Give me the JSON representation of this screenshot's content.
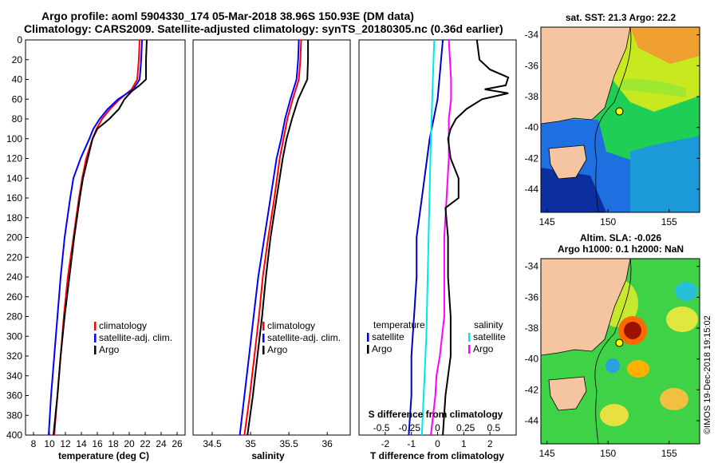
{
  "titles": {
    "line1": "Argo profile: aoml 5904330_174 05-Mar-2018 38.96S 150.93E (DM data)",
    "line2": "Climatology: CARS2009. Satellite-adjusted climatology: synTS_20180305.nc (0.36d earlier)"
  },
  "colors": {
    "climatology": "#ff0000",
    "satellite": "#0000ff",
    "argo": "#000000",
    "t_sat": "#0000cc",
    "s_sat": "#00e5ee",
    "s_argo": "#ff00ff"
  },
  "chart_data": [
    {
      "type": "line",
      "name": "temperature-profile",
      "xlabel": "temperature (deg C)",
      "ylabel": "",
      "xlim": [
        7,
        27
      ],
      "ylim": [
        400,
        0
      ],
      "xticks": [
        8,
        10,
        12,
        14,
        16,
        18,
        20,
        22,
        24,
        26
      ],
      "yticks": [
        0,
        20,
        40,
        60,
        80,
        100,
        120,
        140,
        160,
        180,
        200,
        220,
        240,
        260,
        280,
        300,
        320,
        340,
        360,
        380,
        400
      ],
      "legend": [
        "climatology",
        "satellite-adj. clim.",
        "Argo"
      ],
      "series": [
        {
          "name": "climatology",
          "color": "#ff0000",
          "depth": [
            0,
            20,
            40,
            50,
            60,
            70,
            80,
            90,
            100,
            120,
            140,
            160,
            200,
            240,
            280,
            320,
            360,
            400
          ],
          "values": [
            21.3,
            21.2,
            21.0,
            20.3,
            18.8,
            17.6,
            16.6,
            15.9,
            15.4,
            14.6,
            14.1,
            13.7,
            13.0,
            12.3,
            11.8,
            11.4,
            11.0,
            10.6
          ]
        },
        {
          "name": "satellite-adj. clim.",
          "color": "#0000ff",
          "depth": [
            0,
            20,
            40,
            50,
            60,
            70,
            80,
            90,
            100,
            120,
            140,
            160,
            200,
            240,
            280,
            320,
            360,
            400
          ],
          "values": [
            21.6,
            21.5,
            21.3,
            20.5,
            18.6,
            17.3,
            16.3,
            15.5,
            15.0,
            13.9,
            13.0,
            12.6,
            11.9,
            11.4,
            11.0,
            10.6,
            10.2,
            9.9
          ]
        },
        {
          "name": "Argo",
          "color": "#000000",
          "depth": [
            0,
            20,
            40,
            46,
            52,
            60,
            70,
            80,
            90,
            100,
            120,
            140,
            160,
            200,
            240,
            280,
            320,
            360,
            400
          ],
          "values": [
            22.2,
            22.1,
            22.1,
            21.3,
            20.3,
            19.4,
            18.7,
            17.5,
            16.0,
            15.4,
            14.8,
            14.2,
            13.8,
            13.1,
            12.5,
            11.9,
            11.4,
            11.0,
            10.5
          ]
        }
      ]
    },
    {
      "type": "line",
      "name": "salinity-profile",
      "xlabel": "salinity",
      "ylabel": "",
      "xlim": [
        34.25,
        36.3
      ],
      "ylim": [
        400,
        0
      ],
      "xticks": [
        34.5,
        35,
        35.5,
        36
      ],
      "legend": [
        "climatology",
        "satellite-adj. clim.",
        "Argo"
      ],
      "series": [
        {
          "name": "climatology",
          "color": "#ff0000",
          "depth": [
            0,
            20,
            40,
            60,
            80,
            100,
            120,
            160,
            200,
            240,
            280,
            320,
            360,
            400
          ],
          "values": [
            35.66,
            35.65,
            35.63,
            35.55,
            35.48,
            35.43,
            35.38,
            35.31,
            35.23,
            35.16,
            35.11,
            35.05,
            34.99,
            34.92
          ]
        },
        {
          "name": "satellite-adj. clim.",
          "color": "#0000ff",
          "depth": [
            0,
            20,
            40,
            60,
            80,
            100,
            120,
            160,
            200,
            240,
            280,
            320,
            360,
            400
          ],
          "values": [
            35.63,
            35.62,
            35.6,
            35.52,
            35.45,
            35.4,
            35.34,
            35.26,
            35.18,
            35.1,
            35.04,
            34.98,
            34.92,
            34.86
          ]
        },
        {
          "name": "Argo",
          "color": "#000000",
          "depth": [
            0,
            20,
            40,
            60,
            80,
            100,
            120,
            160,
            200,
            240,
            280,
            320,
            360,
            400
          ],
          "values": [
            35.75,
            35.75,
            35.74,
            35.62,
            35.54,
            35.47,
            35.42,
            35.34,
            35.26,
            35.2,
            35.15,
            35.09,
            35.03,
            34.96
          ]
        }
      ]
    },
    {
      "type": "line",
      "name": "difference-profile",
      "xlabel": "T difference from climatology",
      "x2label": "S difference from climatology",
      "xlim": [
        -3,
        3
      ],
      "ylim": [
        400,
        0
      ],
      "xticks": [
        -2,
        -1,
        0,
        1,
        2
      ],
      "x2ticks": [
        -0.5,
        -0.25,
        0,
        0.25,
        0.5
      ],
      "legend_left_title": "temperature",
      "legend_right_title": "salinity",
      "legend_left": [
        "satellite",
        "Argo"
      ],
      "legend_right": [
        "satellite",
        "Argo"
      ],
      "series": [
        {
          "name": "T satellite",
          "color": "#0000cc",
          "depth": [
            0,
            60,
            100,
            160,
            200,
            240,
            280,
            320,
            360,
            400
          ],
          "values": [
            0.2,
            0.0,
            -0.3,
            -0.6,
            -0.8,
            -0.8,
            -0.9,
            -1.0,
            -1.0,
            -1.1
          ]
        },
        {
          "name": "S satellite",
          "color": "#00e5ee",
          "depth": [
            0,
            100,
            200,
            300,
            400
          ],
          "values": [
            -0.03,
            -0.06,
            -0.08,
            -0.1,
            -0.14
          ]
        },
        {
          "name": "S Argo",
          "color": "#ff00ff",
          "depth": [
            0,
            40,
            60,
            80,
            120,
            200,
            280,
            320,
            340,
            360,
            400
          ],
          "values": [
            0.1,
            0.12,
            0.12,
            0.1,
            0.1,
            0.06,
            0.06,
            0.02,
            -0.01,
            -0.02,
            -0.06
          ]
        },
        {
          "name": "T Argo",
          "color": "#000000",
          "depth": [
            0,
            20,
            30,
            38,
            46,
            50,
            54,
            60,
            70,
            80,
            90,
            100,
            120,
            140,
            160,
            170,
            200,
            240,
            280,
            320,
            360,
            400
          ],
          "values": [
            1.5,
            1.6,
            2.0,
            2.7,
            2.6,
            1.8,
            2.7,
            1.7,
            1.1,
            0.7,
            0.5,
            0.4,
            0.5,
            0.8,
            0.8,
            0.3,
            0.4,
            0.4,
            0.5,
            0.5,
            0.3,
            0.2
          ]
        }
      ]
    },
    {
      "type": "heatmap",
      "name": "sst-map",
      "title": "sat. SST: 21.3 Argo: 22.2",
      "xticks": [
        145,
        150,
        155
      ],
      "yticks": [
        -34,
        -36,
        -38,
        -40,
        -42,
        -44
      ],
      "xlim": [
        144.5,
        157.5
      ],
      "ylim": [
        -45.5,
        -33.5
      ],
      "argo_position": {
        "lon": 150.93,
        "lat": -38.96
      }
    },
    {
      "type": "heatmap",
      "name": "sla-map",
      "title_line1": "Altim. SLA: -0.026",
      "title_line2": "Argo h1000: 0.1 h2000: NaN",
      "xticks": [
        145,
        150,
        155
      ],
      "yticks": [
        -34,
        -36,
        -38,
        -40,
        -42,
        -44
      ],
      "xlim": [
        144.5,
        157.5
      ],
      "ylim": [
        -45.5,
        -33.5
      ],
      "argo_position": {
        "lon": 150.93,
        "lat": -38.96
      }
    }
  ],
  "footer_stamp": "©IMOS 19-Dec-2018 19:15:02"
}
